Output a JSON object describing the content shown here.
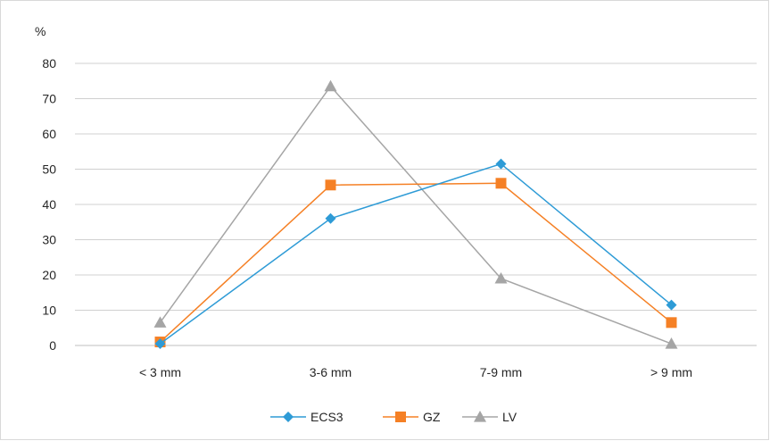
{
  "chart_data": {
    "type": "line",
    "title": "",
    "ylabel": "%",
    "xlabel": "",
    "categories": [
      "< 3 mm",
      "3-6 mm",
      "7-9 mm",
      "> 9 mm"
    ],
    "ylim": [
      0,
      80
    ],
    "yticks": [
      0,
      10,
      20,
      30,
      40,
      50,
      60,
      70,
      80
    ],
    "grid": true,
    "legend_position": "bottom",
    "series": [
      {
        "name": "ECS3",
        "values": [
          0.5,
          36,
          51.5,
          11.5
        ],
        "color": "#2E9BD6",
        "marker": "diamond"
      },
      {
        "name": "GZ",
        "values": [
          1,
          45.5,
          46,
          6.5
        ],
        "color": "#F58025",
        "marker": "square"
      },
      {
        "name": "LV",
        "values": [
          6.5,
          73.5,
          19,
          0.5
        ],
        "color": "#A5A5A5",
        "marker": "triangle"
      }
    ]
  }
}
